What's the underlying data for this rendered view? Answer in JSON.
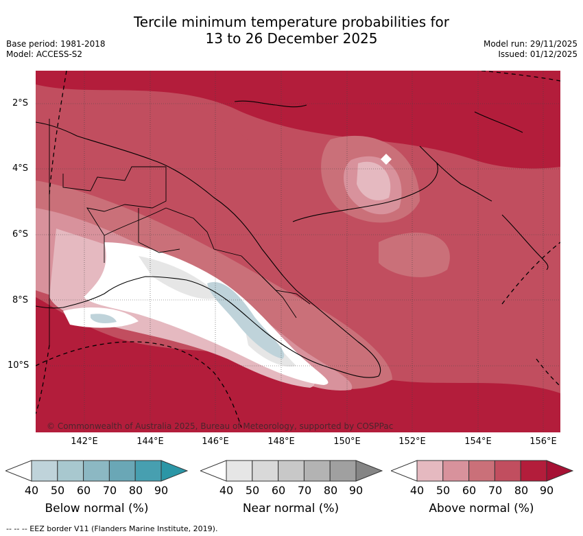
{
  "title_line1": "Tercile minimum temperature probabilities for",
  "title_line2": "13 to 26 December 2025",
  "meta_left": [
    "Base period: 1981-2018",
    "Model: ACCESS-S2"
  ],
  "meta_right": [
    "Model run: 29/11/2025",
    "Issued: 01/12/2025"
  ],
  "copyright": "© Commonwealth of Australia 2025, Bureau of Meteorology, supported by COSPPac",
  "lat_labels": [
    "2°S",
    "4°S",
    "6°S",
    "8°S",
    "10°S"
  ],
  "lon_labels": [
    "142°E",
    "144°E",
    "146°E",
    "148°E",
    "150°E",
    "152°E",
    "154°E",
    "156°E"
  ],
  "legends": [
    {
      "caption": "Below normal (%)",
      "ticks": [
        "40",
        "50",
        "60",
        "70",
        "80",
        "90"
      ],
      "colors": [
        "#bfd3da",
        "#a8c8cf",
        "#8cb8c3",
        "#6aa7b6",
        "#479fb0",
        "#2b96a6"
      ]
    },
    {
      "caption": "Near normal (%)",
      "ticks": [
        "40",
        "50",
        "60",
        "70",
        "80",
        "90"
      ],
      "colors": [
        "#e6e6e6",
        "#d9d9d9",
        "#c8c8c8",
        "#b3b3b3",
        "#a0a0a0",
        "#858585"
      ]
    },
    {
      "caption": "Above normal (%)",
      "ticks": [
        "40",
        "50",
        "60",
        "70",
        "80",
        "90"
      ],
      "colors": [
        "#e5b9c0",
        "#d8929c",
        "#ca7079",
        "#c14e5f",
        "#b31d3b",
        "#a61134"
      ]
    }
  ],
  "footnote": "-- -- -- EEZ border V11 (Flanders Marine Institute, 2019)."
}
